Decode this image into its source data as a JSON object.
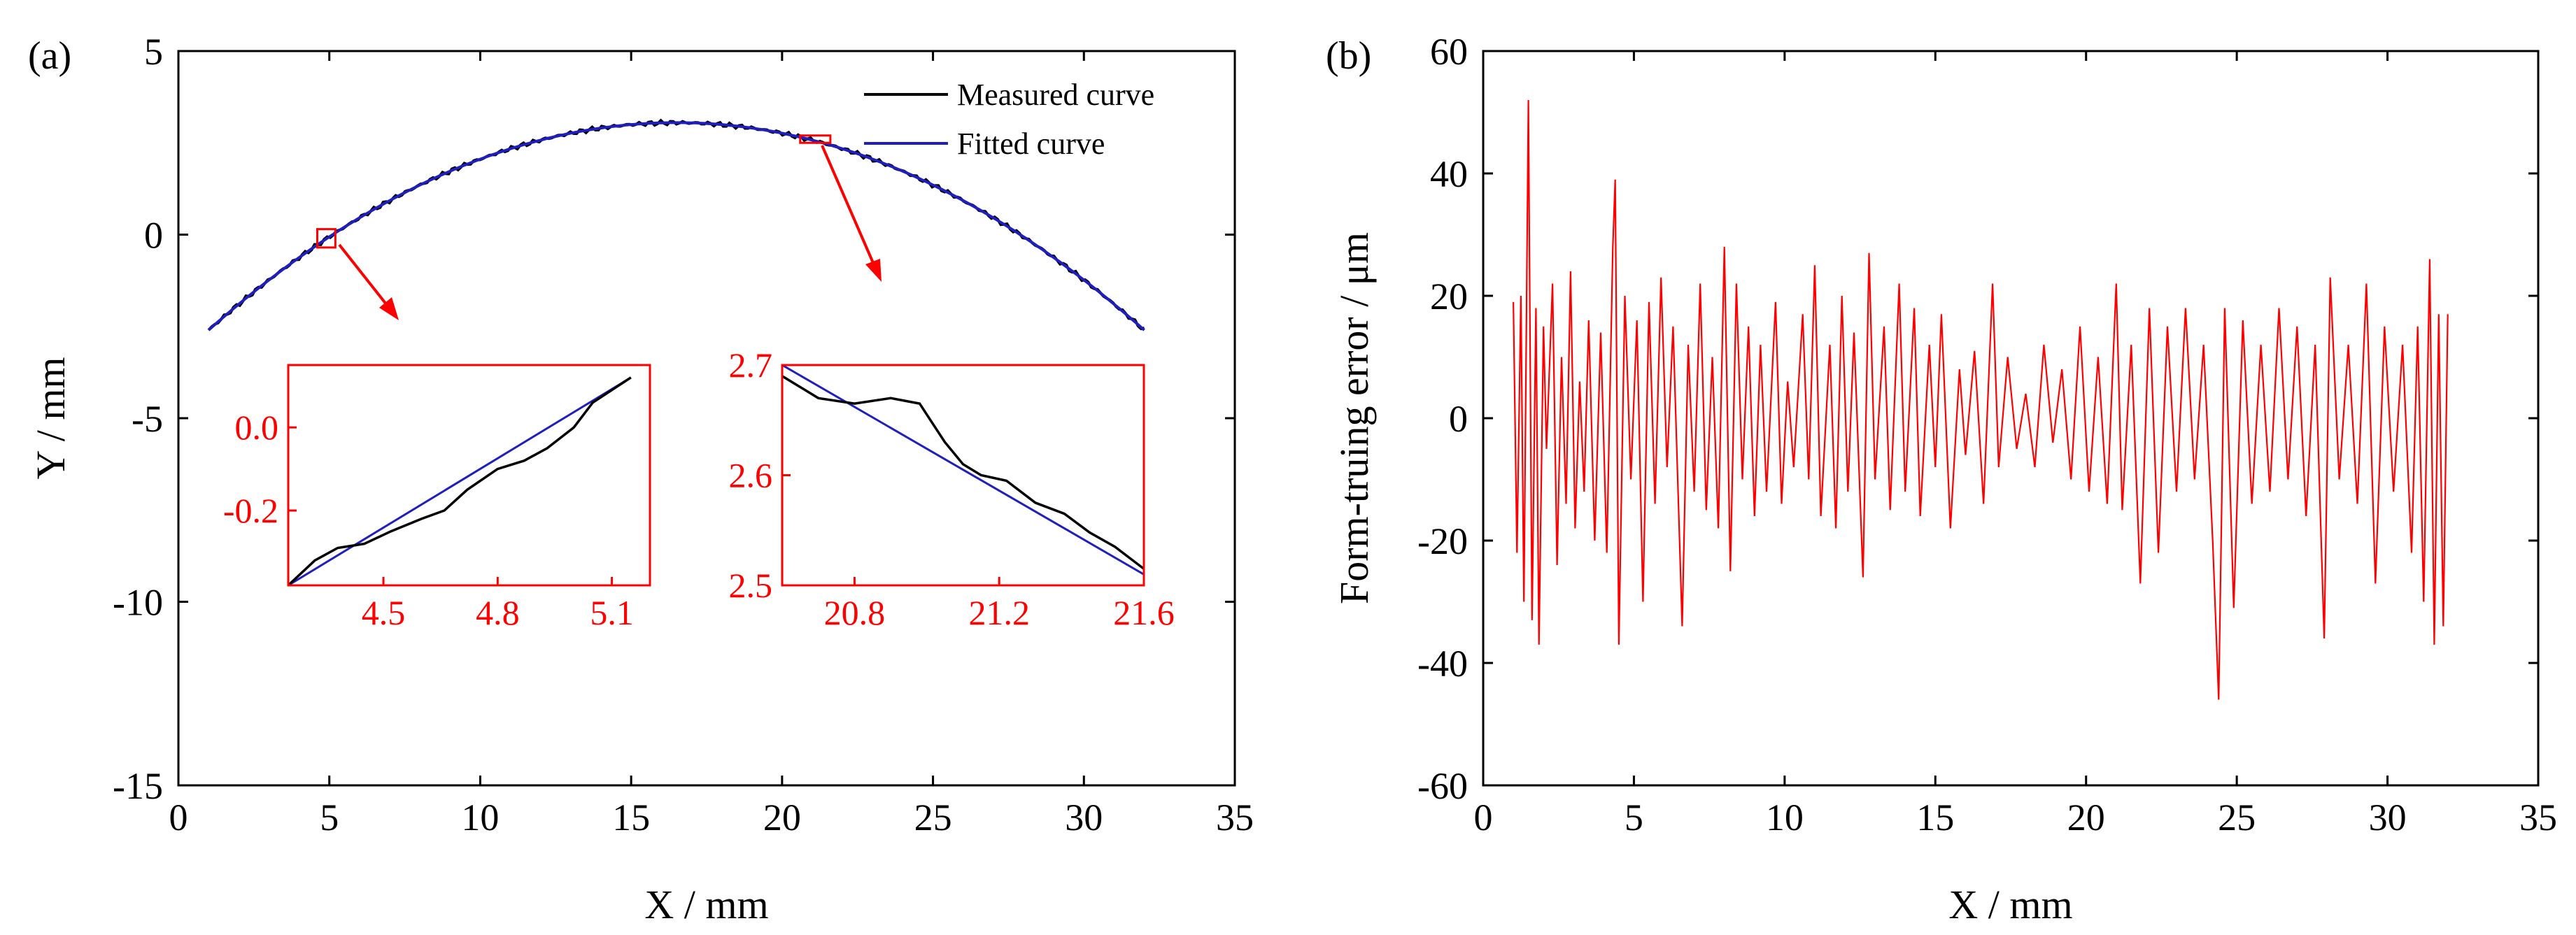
{
  "chart_data": [
    {
      "id": "a",
      "panel_label": "(a)",
      "type": "line",
      "xlabel": "X / mm",
      "ylabel": "Y / mm",
      "xlim": [
        0,
        35
      ],
      "ylim": [
        -15,
        5
      ],
      "xticks": [
        0,
        5,
        10,
        15,
        20,
        25,
        30,
        35
      ],
      "yticks": [
        -15,
        -10,
        -5,
        0,
        5
      ],
      "legend": {
        "position": "top-right",
        "entries": [
          "Measured curve",
          "Fitted curve"
        ]
      },
      "series": [
        {
          "name": "Measured curve",
          "color": "#000000",
          "x_range": [
            1.0,
            32.0
          ],
          "form": "arc",
          "apex": [
            16.5,
            3.05
          ],
          "edge_y": -2.6
        },
        {
          "name": "Fitted curve",
          "color": "#1f1fbf",
          "x_range": [
            1.0,
            32.0
          ],
          "form": "arc",
          "apex": [
            16.5,
            3.05
          ],
          "edge_y": -2.6
        }
      ],
      "highlight_boxes": [
        {
          "x": [
            4.6,
            5.2
          ],
          "y": [
            -0.35,
            0.15
          ]
        },
        {
          "x": [
            20.6,
            21.6
          ],
          "y": [
            2.5,
            2.7
          ]
        }
      ],
      "insets": [
        {
          "xlim": [
            4.25,
            5.2
          ],
          "ylim": [
            -0.38,
            0.15
          ],
          "xticks": [
            "4.5",
            "4.8",
            "5.1"
          ],
          "yticks": [
            "0.0",
            "-0.2"
          ],
          "fit_line": [
            [
              4.25,
              -0.38
            ],
            [
              5.15,
              0.12
            ]
          ],
          "measured": [
            [
              4.25,
              -0.38
            ],
            [
              4.32,
              -0.32
            ],
            [
              4.38,
              -0.29
            ],
            [
              4.45,
              -0.28
            ],
            [
              4.52,
              -0.25
            ],
            [
              4.6,
              -0.22
            ],
            [
              4.66,
              -0.2
            ],
            [
              4.72,
              -0.15
            ],
            [
              4.8,
              -0.1
            ],
            [
              4.87,
              -0.08
            ],
            [
              4.93,
              -0.05
            ],
            [
              5.0,
              0.0
            ],
            [
              5.05,
              0.06
            ],
            [
              5.1,
              0.09
            ],
            [
              5.15,
              0.12
            ]
          ]
        },
        {
          "xlim": [
            20.6,
            21.6
          ],
          "ylim": [
            2.5,
            2.7
          ],
          "xticks": [
            "20.8",
            "21.2",
            "21.6"
          ],
          "yticks": [
            "2.7",
            "2.6",
            "2.5"
          ],
          "fit_line": [
            [
              20.6,
              2.7
            ],
            [
              21.6,
              2.51
            ]
          ],
          "measured": [
            [
              20.6,
              2.69
            ],
            [
              20.65,
              2.68
            ],
            [
              20.7,
              2.67
            ],
            [
              20.8,
              2.665
            ],
            [
              20.9,
              2.67
            ],
            [
              20.98,
              2.665
            ],
            [
              21.0,
              2.655
            ],
            [
              21.05,
              2.63
            ],
            [
              21.1,
              2.61
            ],
            [
              21.15,
              2.6
            ],
            [
              21.22,
              2.595
            ],
            [
              21.3,
              2.575
            ],
            [
              21.38,
              2.565
            ],
            [
              21.45,
              2.548
            ],
            [
              21.52,
              2.535
            ],
            [
              21.6,
              2.515
            ]
          ]
        }
      ]
    },
    {
      "id": "b",
      "panel_label": "(b)",
      "type": "line",
      "xlabel": "X / mm",
      "ylabel": "Form-truing error / μm",
      "xlim": [
        0,
        35
      ],
      "ylim": [
        -60,
        60
      ],
      "xticks": [
        0,
        5,
        10,
        15,
        20,
        25,
        30,
        35
      ],
      "yticks": [
        60,
        40,
        20,
        0,
        -20,
        -40,
        -60
      ],
      "series": [
        {
          "name": "Form-truing error",
          "color": "#ff0000",
          "x_range": [
            1.0,
            32.0
          ],
          "points": [
            [
              1.0,
              19
            ],
            [
              1.12,
              -22
            ],
            [
              1.25,
              20
            ],
            [
              1.35,
              -30
            ],
            [
              1.5,
              52
            ],
            [
              1.62,
              -33
            ],
            [
              1.75,
              18
            ],
            [
              1.85,
              -37
            ],
            [
              2.0,
              15
            ],
            [
              2.1,
              -5
            ],
            [
              2.3,
              22
            ],
            [
              2.45,
              -24
            ],
            [
              2.6,
              10
            ],
            [
              2.75,
              -14
            ],
            [
              2.9,
              24
            ],
            [
              3.05,
              -18
            ],
            [
              3.2,
              6
            ],
            [
              3.35,
              -12
            ],
            [
              3.5,
              16
            ],
            [
              3.7,
              -20
            ],
            [
              3.9,
              14
            ],
            [
              4.1,
              -22
            ],
            [
              4.3,
              28
            ],
            [
              4.38,
              39
            ],
            [
              4.5,
              -37
            ],
            [
              4.7,
              20
            ],
            [
              4.9,
              -10
            ],
            [
              5.1,
              16
            ],
            [
              5.3,
              -30
            ],
            [
              5.5,
              19
            ],
            [
              5.7,
              -14
            ],
            [
              5.9,
              23
            ],
            [
              6.1,
              -8
            ],
            [
              6.3,
              15
            ],
            [
              6.6,
              -34
            ],
            [
              6.8,
              12
            ],
            [
              7.0,
              -12
            ],
            [
              7.2,
              22
            ],
            [
              7.4,
              -15
            ],
            [
              7.6,
              10
            ],
            [
              7.8,
              -18
            ],
            [
              8.0,
              28
            ],
            [
              8.2,
              -25
            ],
            [
              8.4,
              22
            ],
            [
              8.6,
              -10
            ],
            [
              8.8,
              15
            ],
            [
              9.0,
              -16
            ],
            [
              9.2,
              12
            ],
            [
              9.4,
              -12
            ],
            [
              9.7,
              19
            ],
            [
              9.9,
              -14
            ],
            [
              10.1,
              6
            ],
            [
              10.3,
              -8
            ],
            [
              10.6,
              17
            ],
            [
              10.8,
              -10
            ],
            [
              11.0,
              25
            ],
            [
              11.2,
              -16
            ],
            [
              11.5,
              12
            ],
            [
              11.7,
              -18
            ],
            [
              11.9,
              20
            ],
            [
              12.1,
              -12
            ],
            [
              12.3,
              14
            ],
            [
              12.6,
              -26
            ],
            [
              12.8,
              27
            ],
            [
              13.0,
              -10
            ],
            [
              13.3,
              15
            ],
            [
              13.5,
              -15
            ],
            [
              13.8,
              22
            ],
            [
              14.0,
              -12
            ],
            [
              14.3,
              18
            ],
            [
              14.5,
              -16
            ],
            [
              14.8,
              12
            ],
            [
              15.0,
              -8
            ],
            [
              15.2,
              17
            ],
            [
              15.5,
              -18
            ],
            [
              15.8,
              8
            ],
            [
              16.0,
              -6
            ],
            [
              16.3,
              11
            ],
            [
              16.6,
              -14
            ],
            [
              16.9,
              22
            ],
            [
              17.1,
              -8
            ],
            [
              17.4,
              10
            ],
            [
              17.7,
              -5
            ],
            [
              18.0,
              4
            ],
            [
              18.3,
              -8
            ],
            [
              18.6,
              12
            ],
            [
              18.9,
              -4
            ],
            [
              19.2,
              8
            ],
            [
              19.5,
              -10
            ],
            [
              19.8,
              15
            ],
            [
              20.1,
              -12
            ],
            [
              20.4,
              10
            ],
            [
              20.7,
              -14
            ],
            [
              21.0,
              22
            ],
            [
              21.2,
              -15
            ],
            [
              21.5,
              12
            ],
            [
              21.8,
              -27
            ],
            [
              22.1,
              18
            ],
            [
              22.4,
              -22
            ],
            [
              22.7,
              15
            ],
            [
              23.0,
              -12
            ],
            [
              23.3,
              18
            ],
            [
              23.6,
              -10
            ],
            [
              23.9,
              12
            ],
            [
              24.2,
              -20
            ],
            [
              24.4,
              -46
            ],
            [
              24.6,
              18
            ],
            [
              24.9,
              -31
            ],
            [
              25.2,
              16
            ],
            [
              25.5,
              -14
            ],
            [
              25.8,
              12
            ],
            [
              26.1,
              -12
            ],
            [
              26.4,
              18
            ],
            [
              26.7,
              -10
            ],
            [
              27.0,
              15
            ],
            [
              27.3,
              -16
            ],
            [
              27.6,
              12
            ],
            [
              27.9,
              -36
            ],
            [
              28.1,
              23
            ],
            [
              28.4,
              -10
            ],
            [
              28.7,
              12
            ],
            [
              29.0,
              -14
            ],
            [
              29.3,
              22
            ],
            [
              29.6,
              -27
            ],
            [
              29.9,
              15
            ],
            [
              30.2,
              -12
            ],
            [
              30.5,
              12
            ],
            [
              30.8,
              -22
            ],
            [
              31.0,
              15
            ],
            [
              31.2,
              -30
            ],
            [
              31.4,
              26
            ],
            [
              31.55,
              -37
            ],
            [
              31.7,
              17
            ],
            [
              31.85,
              -34
            ],
            [
              32.0,
              17
            ]
          ]
        }
      ]
    }
  ]
}
